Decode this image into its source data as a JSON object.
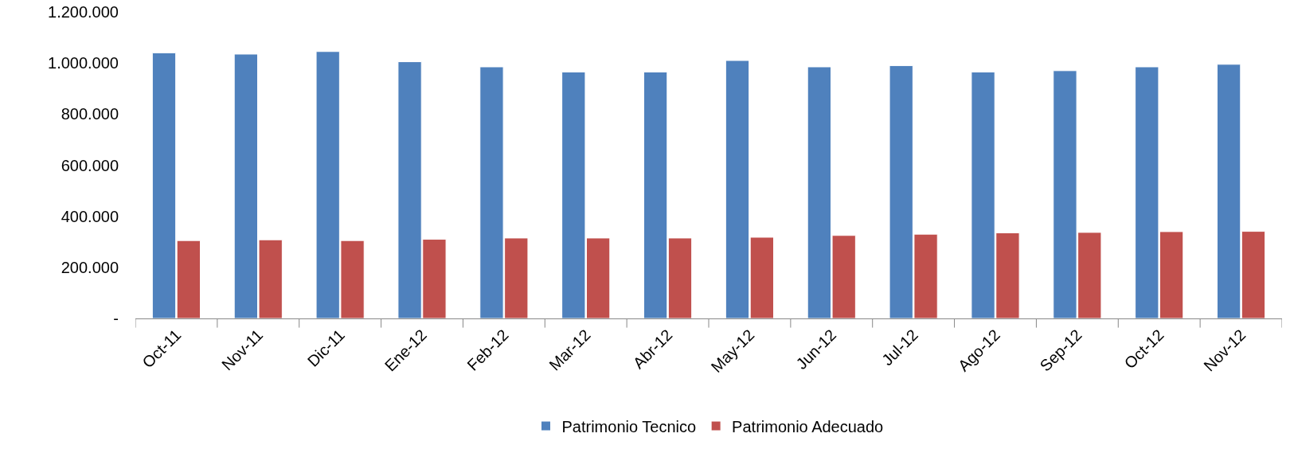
{
  "chart_data": {
    "type": "bar",
    "categories": [
      "Oct-11",
      "Nov-11",
      "Dic-11",
      "Ene-12",
      "Feb-12",
      "Mar-12",
      "Abr-12",
      "May-12",
      "Jun-12",
      "Jul-12",
      "Ago-12",
      "Sep-12",
      "Oct-12",
      "Nov-12"
    ],
    "series": [
      {
        "name": "Patrimonio Tecnico",
        "color": "#4f81bd",
        "values": [
          1040000,
          1035000,
          1045000,
          1005000,
          985000,
          965000,
          965000,
          1010000,
          985000,
          990000,
          965000,
          970000,
          985000,
          995000
        ]
      },
      {
        "name": "Patrimonio Adecuado",
        "color": "#c0504d",
        "values": [
          305000,
          308000,
          305000,
          310000,
          315000,
          315000,
          315000,
          318000,
          325000,
          330000,
          335000,
          337000,
          340000,
          341000
        ]
      }
    ],
    "ylim": [
      0,
      1200000
    ],
    "yticks": [
      {
        "value": 0,
        "label": "-"
      },
      {
        "value": 200000,
        "label": "200.000"
      },
      {
        "value": 400000,
        "label": "400.000"
      },
      {
        "value": 600000,
        "label": "600.000"
      },
      {
        "value": 800000,
        "label": "800.000"
      },
      {
        "value": 1000000,
        "label": "1.000.000"
      },
      {
        "value": 1200000,
        "label": "1.200.000"
      }
    ],
    "grid": false,
    "legend": "bottom"
  }
}
